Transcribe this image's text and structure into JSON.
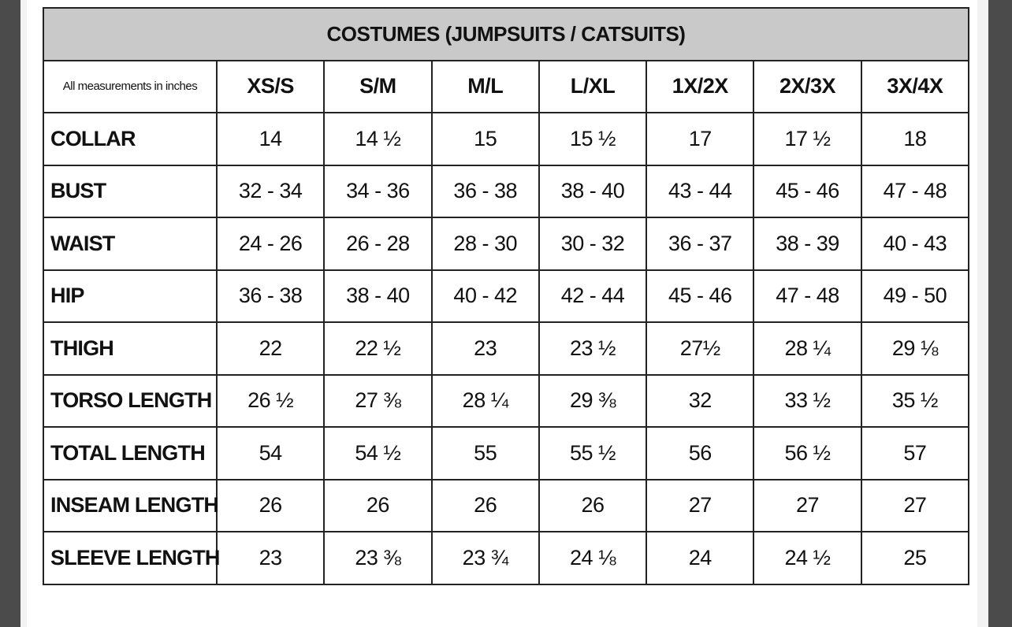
{
  "table": {
    "title": "COSTUMES (JUMPSUITS / CATSUITS)",
    "header": [
      "All measurements in inches",
      "XS/S",
      "S/M",
      "M/L",
      "L/XL",
      "1X/2X",
      "2X/3X",
      "3X/4X"
    ],
    "rows": [
      [
        "COLLAR",
        "14",
        "14 ½",
        "15",
        "15 ½",
        "17",
        "17 ½",
        "18"
      ],
      [
        "BUST",
        "32 - 34",
        "34 - 36",
        "36 - 38",
        "38 - 40",
        "43 - 44",
        "45 - 46",
        "47 - 48"
      ],
      [
        "WAIST",
        "24 - 26",
        "26 - 28",
        "28 - 30",
        "30 - 32",
        "36 - 37",
        "38 - 39",
        "40 - 43"
      ],
      [
        "HIP",
        "36 - 38",
        "38 - 40",
        "40 - 42",
        "42 - 44",
        "45 - 46",
        "47 - 48",
        "49 - 50"
      ],
      [
        "THIGH",
        "22",
        "22 ½",
        "23",
        "23 ½",
        "27½",
        "28 ¼",
        "29 ⅛"
      ],
      [
        "TORSO LENGTH",
        "26 ½",
        "27 ⅜",
        "28 ¼",
        "29 ⅜",
        "32",
        "33 ½",
        "35 ½"
      ],
      [
        "TOTAL LENGTH",
        "54",
        "54 ½",
        "55",
        "55 ½",
        "56",
        "56 ½",
        "57"
      ],
      [
        "INSEAM LENGTH",
        "26",
        "26",
        "26",
        "26",
        "27",
        "27",
        "27"
      ],
      [
        "SLEEVE LENGTH",
        "23",
        "23 ⅜",
        "23 ¾",
        "24 ⅛",
        "24",
        "24 ½",
        "25"
      ]
    ]
  }
}
